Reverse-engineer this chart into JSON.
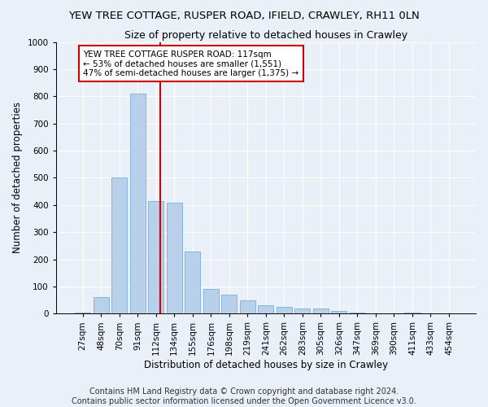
{
  "title": "YEW TREE COTTAGE, RUSPER ROAD, IFIELD, CRAWLEY, RH11 0LN",
  "subtitle": "Size of property relative to detached houses in Crawley",
  "xlabel": "Distribution of detached houses by size in Crawley",
  "ylabel": "Number of detached properties",
  "bins": [
    "27sqm",
    "48sqm",
    "70sqm",
    "91sqm",
    "112sqm",
    "134sqm",
    "155sqm",
    "176sqm",
    "198sqm",
    "219sqm",
    "241sqm",
    "262sqm",
    "283sqm",
    "305sqm",
    "326sqm",
    "347sqm",
    "369sqm",
    "390sqm",
    "411sqm",
    "433sqm",
    "454sqm"
  ],
  "values": [
    3,
    60,
    500,
    810,
    415,
    410,
    230,
    90,
    70,
    50,
    30,
    25,
    20,
    20,
    10,
    5,
    0,
    0,
    5,
    0,
    0
  ],
  "bar_color": "#b8d0ea",
  "bar_edge_color": "#7aafd4",
  "vline_bin_index": 4,
  "vline_color": "#cc0000",
  "annotation_text": "YEW TREE COTTAGE RUSPER ROAD: 117sqm\n← 53% of detached houses are smaller (1,551)\n47% of semi-detached houses are larger (1,375) →",
  "annotation_box_color": "#ffffff",
  "annotation_box_edge_color": "#cc0000",
  "ylim": [
    0,
    1000
  ],
  "yticks": [
    0,
    100,
    200,
    300,
    400,
    500,
    600,
    700,
    800,
    900,
    1000
  ],
  "footer_line1": "Contains HM Land Registry data © Crown copyright and database right 2024.",
  "footer_line2": "Contains public sector information licensed under the Open Government Licence v3.0.",
  "bg_color": "#eaf0f8",
  "plot_bg_color": "#eaf0f8",
  "grid_color": "#ffffff",
  "title_fontsize": 9.5,
  "subtitle_fontsize": 9,
  "label_fontsize": 8.5,
  "tick_fontsize": 7.5,
  "footer_fontsize": 7,
  "annotation_fontsize": 7.5
}
